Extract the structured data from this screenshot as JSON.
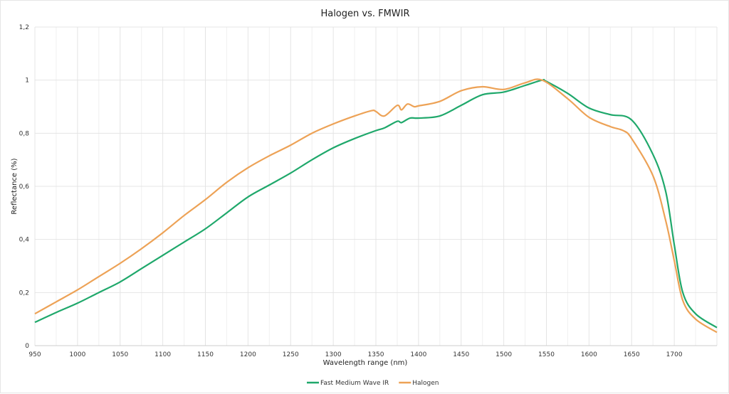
{
  "chart_data": {
    "type": "line",
    "title": "Halogen vs. FMWIR",
    "xlabel": "Wavelength range (nm)",
    "ylabel": "Reflectance (%)",
    "xlim": [
      950,
      1750
    ],
    "ylim": [
      0,
      1.2
    ],
    "xticks": [
      "950",
      "1000",
      "1050",
      "1100",
      "1150",
      "1200",
      "1250",
      "1300",
      "1350",
      "1400",
      "1450",
      "1500",
      "1550",
      "1600",
      "1650",
      "1700"
    ],
    "yticks": [
      "0",
      "0,2",
      "0,4",
      "0,6",
      "0,8",
      "1",
      "1,2"
    ],
    "grid": true,
    "legend": "bottom",
    "series": [
      {
        "name": "Fast Medium Wave IR",
        "color": "#1fa86b",
        "x": [
          950,
          975,
          1000,
          1025,
          1050,
          1075,
          1100,
          1125,
          1150,
          1175,
          1200,
          1225,
          1250,
          1275,
          1300,
          1325,
          1350,
          1360,
          1375,
          1380,
          1390,
          1400,
          1425,
          1450,
          1475,
          1500,
          1525,
          1545,
          1550,
          1575,
          1600,
          1625,
          1650,
          1675,
          1690,
          1700,
          1710,
          1725,
          1750
        ],
        "y": [
          0.088,
          0.125,
          0.16,
          0.2,
          0.24,
          0.29,
          0.34,
          0.39,
          0.44,
          0.5,
          0.56,
          0.605,
          0.65,
          0.7,
          0.745,
          0.78,
          0.81,
          0.82,
          0.845,
          0.84,
          0.857,
          0.857,
          0.865,
          0.905,
          0.945,
          0.955,
          0.98,
          1.0,
          0.995,
          0.95,
          0.895,
          0.87,
          0.85,
          0.72,
          0.58,
          0.38,
          0.2,
          0.12,
          0.068
        ]
      },
      {
        "name": "Halogen",
        "color": "#eda256",
        "x": [
          950,
          975,
          1000,
          1025,
          1050,
          1075,
          1100,
          1125,
          1150,
          1175,
          1200,
          1225,
          1250,
          1275,
          1300,
          1325,
          1345,
          1350,
          1360,
          1375,
          1380,
          1387,
          1395,
          1400,
          1425,
          1450,
          1475,
          1500,
          1525,
          1545,
          1575,
          1600,
          1625,
          1640,
          1650,
          1675,
          1690,
          1700,
          1710,
          1725,
          1750
        ],
        "y": [
          0.12,
          0.165,
          0.21,
          0.26,
          0.31,
          0.365,
          0.425,
          0.49,
          0.55,
          0.615,
          0.67,
          0.715,
          0.755,
          0.8,
          0.835,
          0.865,
          0.885,
          0.882,
          0.865,
          0.905,
          0.888,
          0.91,
          0.9,
          0.903,
          0.92,
          0.96,
          0.975,
          0.965,
          0.99,
          1.0,
          0.93,
          0.86,
          0.825,
          0.81,
          0.78,
          0.64,
          0.47,
          0.32,
          0.17,
          0.1,
          0.05
        ]
      }
    ]
  }
}
